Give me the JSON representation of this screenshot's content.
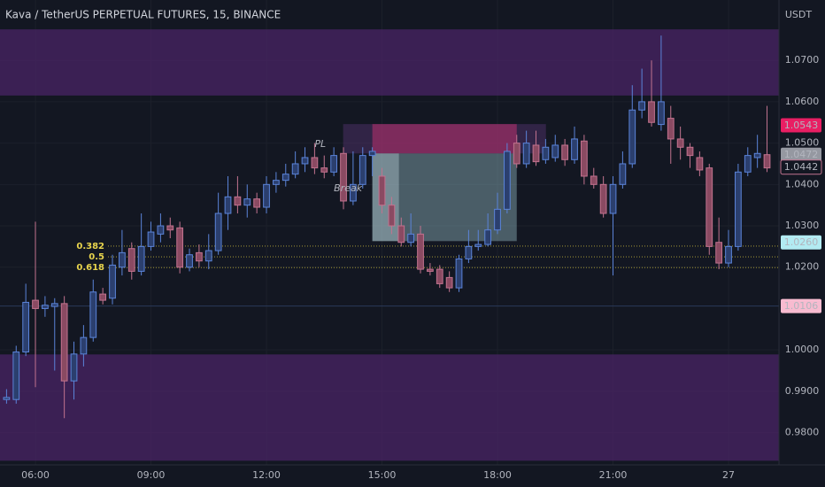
{
  "chart_data": {
    "type": "candlestick",
    "title": "Kava / TetherUS PERPETUAL FUTURES, 15, BINANCE",
    "y_unit": "USDT",
    "up_color": "#5b84d9",
    "down_color": "#c2738f",
    "xlim": [
      5.08,
      25.31
    ],
    "ylim": [
      0.9722,
      1.0846
    ],
    "xticks": [
      {
        "value": 6,
        "label": "06:00"
      },
      {
        "value": 9,
        "label": "09:00"
      },
      {
        "value": 12,
        "label": "12:00"
      },
      {
        "value": 15,
        "label": "15:00"
      },
      {
        "value": 18,
        "label": "18:00"
      },
      {
        "value": 21,
        "label": "21:00"
      },
      {
        "value": 24,
        "label": "27"
      }
    ],
    "yticks": [
      {
        "value": 0.98,
        "label": "0.9800"
      },
      {
        "value": 0.99,
        "label": "0.9900"
      },
      {
        "value": 1.0,
        "label": "1.0000"
      },
      {
        "value": 1.02,
        "label": "1.0200"
      },
      {
        "value": 1.03,
        "label": "1.0300"
      },
      {
        "value": 1.04,
        "label": "1.0400"
      },
      {
        "value": 1.05,
        "label": "1.0500"
      },
      {
        "value": 1.06,
        "label": "1.0600"
      },
      {
        "value": 1.07,
        "label": "1.0700"
      }
    ],
    "grid": true,
    "x": [
      5.25,
      5.5,
      5.75,
      6,
      6.25,
      6.5,
      6.75,
      7,
      7.25,
      7.5,
      7.75,
      8,
      8.25,
      8.5,
      8.75,
      9,
      9.25,
      9.5,
      9.75,
      10,
      10.25,
      10.5,
      10.75,
      11,
      11.25,
      11.5,
      11.75,
      12,
      12.25,
      12.5,
      12.75,
      13,
      13.25,
      13.5,
      13.75,
      14,
      14.25,
      14.5,
      14.75,
      15,
      15.25,
      15.5,
      15.75,
      16,
      16.25,
      16.5,
      16.75,
      17,
      17.25,
      17.5,
      17.75,
      18,
      18.25,
      18.5,
      18.75,
      19,
      19.25,
      19.5,
      19.75,
      20,
      20.25,
      20.5,
      20.75,
      21,
      21.25,
      21.5,
      21.75,
      22,
      22.25,
      22.5,
      22.75,
      23,
      23.25,
      23.5,
      23.75,
      24,
      24.25,
      24.5,
      24.75,
      25
    ],
    "open": [
      0.988,
      0.988,
      0.9995,
      1.012,
      1.01,
      1.0105,
      1.0112,
      0.9925,
      0.999,
      1.003,
      1.0135,
      1.0125,
      1.02,
      1.0245,
      1.019,
      1.025,
      1.028,
      1.03,
      1.0295,
      1.02,
      1.0235,
      1.0215,
      1.024,
      1.033,
      1.037,
      1.035,
      1.0365,
      1.0345,
      1.04,
      1.041,
      1.0425,
      1.045,
      1.0465,
      1.044,
      1.043,
      1.0475,
      1.036,
      1.04,
      1.047,
      1.042,
      1.035,
      1.03,
      1.026,
      1.028,
      1.0195,
      1.0195,
      1.0175,
      1.015,
      1.022,
      1.025,
      1.0255,
      1.029,
      1.034,
      1.05,
      1.045,
      1.0495,
      1.046,
      1.0465,
      1.0495,
      1.046,
      1.0505,
      1.042,
      1.04,
      1.033,
      1.04,
      1.045,
      1.058,
      1.06,
      1.0545,
      1.056,
      1.051,
      1.049,
      1.0465,
      1.044,
      1.026,
      1.021,
      1.025,
      1.043,
      1.0465,
      1.0472
    ],
    "high": [
      0.9905,
      1.001,
      1.016,
      1.031,
      1.013,
      1.0125,
      1.013,
      1.002,
      1.006,
      1.017,
      1.015,
      1.023,
      1.029,
      1.026,
      1.033,
      1.031,
      1.033,
      1.032,
      1.031,
      1.0245,
      1.0255,
      1.028,
      1.038,
      1.042,
      1.042,
      1.04,
      1.038,
      1.042,
      1.043,
      1.045,
      1.048,
      1.049,
      1.05,
      1.047,
      1.049,
      1.049,
      1.048,
      1.049,
      1.049,
      1.044,
      1.037,
      1.032,
      1.033,
      1.03,
      1.021,
      1.0205,
      1.019,
      1.023,
      1.029,
      1.029,
      1.033,
      1.038,
      1.05,
      1.052,
      1.053,
      1.053,
      1.051,
      1.052,
      1.051,
      1.054,
      1.052,
      1.044,
      1.042,
      1.042,
      1.048,
      1.064,
      1.068,
      1.07,
      1.076,
      1.059,
      1.054,
      1.05,
      1.048,
      1.045,
      1.032,
      1.029,
      1.045,
      1.049,
      1.052,
      1.059
    ],
    "low": [
      0.987,
      0.987,
      0.9985,
      0.991,
      1.008,
      0.995,
      0.9835,
      0.988,
      0.996,
      1.002,
      1.011,
      1.011,
      1.018,
      1.017,
      1.018,
      1.024,
      1.026,
      1.027,
      1.0185,
      1.019,
      1.02,
      1.0195,
      1.023,
      1.029,
      1.033,
      1.032,
      1.033,
      1.033,
      1.038,
      1.0395,
      1.0415,
      1.043,
      1.0425,
      1.0415,
      1.042,
      1.034,
      1.035,
      1.039,
      1.042,
      1.033,
      1.028,
      1.025,
      1.025,
      1.0185,
      1.018,
      1.015,
      1.014,
      1.014,
      1.021,
      1.024,
      1.025,
      1.028,
      1.033,
      1.044,
      1.044,
      1.0445,
      1.045,
      1.0455,
      1.0445,
      1.045,
      1.04,
      1.039,
      1.032,
      1.018,
      1.039,
      1.044,
      1.056,
      1.054,
      1.053,
      1.045,
      1.046,
      1.044,
      1.042,
      1.023,
      1.0195,
      1.02,
      1.024,
      1.042,
      1.044,
      1.043
    ],
    "close": [
      0.9885,
      0.9995,
      1.0115,
      1.01,
      1.0108,
      1.0112,
      0.9925,
      0.999,
      1.003,
      1.014,
      1.012,
      1.0205,
      1.0235,
      1.019,
      1.025,
      1.0285,
      1.03,
      1.029,
      1.02,
      1.023,
      1.0215,
      1.024,
      1.033,
      1.037,
      1.035,
      1.0365,
      1.0345,
      1.04,
      1.041,
      1.0425,
      1.045,
      1.0465,
      1.044,
      1.043,
      1.047,
      1.036,
      1.04,
      1.047,
      1.048,
      1.035,
      1.03,
      1.026,
      1.028,
      1.0195,
      1.019,
      1.016,
      1.015,
      1.022,
      1.025,
      1.0255,
      1.029,
      1.034,
      1.048,
      1.045,
      1.05,
      1.0455,
      1.049,
      1.0495,
      1.046,
      1.051,
      1.042,
      1.04,
      1.033,
      1.04,
      1.045,
      1.058,
      1.06,
      1.055,
      1.06,
      1.051,
      1.049,
      1.047,
      1.0435,
      1.025,
      1.021,
      1.025,
      1.043,
      1.047,
      1.0475,
      1.044
    ],
    "zones": [
      {
        "from": 1.0615,
        "to": 1.0775,
        "color": "#4a2466"
      },
      {
        "from": 0.9732,
        "to": 0.9989,
        "color": "#4a2466"
      }
    ],
    "levels": [
      {
        "value": 1.0106,
        "color": "#2a3a5a"
      }
    ],
    "fib_levels": [
      {
        "label": "0.382",
        "value": 1.0251
      },
      {
        "label": "0.5",
        "value": 1.0225
      },
      {
        "label": "0.618",
        "value": 1.0199
      }
    ],
    "position": {
      "start": 14.75,
      "end": 18.5,
      "entry": 1.0475,
      "stop": 1.0546,
      "target": 1.0263
    },
    "annotations": [
      {
        "text": "PL",
        "x": 13.25,
        "y": 1.0497
      },
      {
        "text": "Break",
        "x": 13.75,
        "y": 1.039
      }
    ],
    "price_labels": [
      {
        "value": 1.0543,
        "label": "1.0543",
        "color": "#e91e63",
        "text_color": "#ffffff"
      },
      {
        "value": 1.0472,
        "label": "1.0472",
        "color": "#9598a1",
        "text_color": "#000000"
      },
      {
        "value": 1.0442,
        "label": "1.0442",
        "color": "#131722",
        "text_color": "#f48fb1"
      },
      {
        "value": 1.026,
        "label": "1.0260",
        "color": "#b2ebf2",
        "text_color": "#000000"
      },
      {
        "value": 1.0106,
        "label": "1.0106",
        "color": "#f8bbd0",
        "text_color": "#000000"
      }
    ]
  }
}
